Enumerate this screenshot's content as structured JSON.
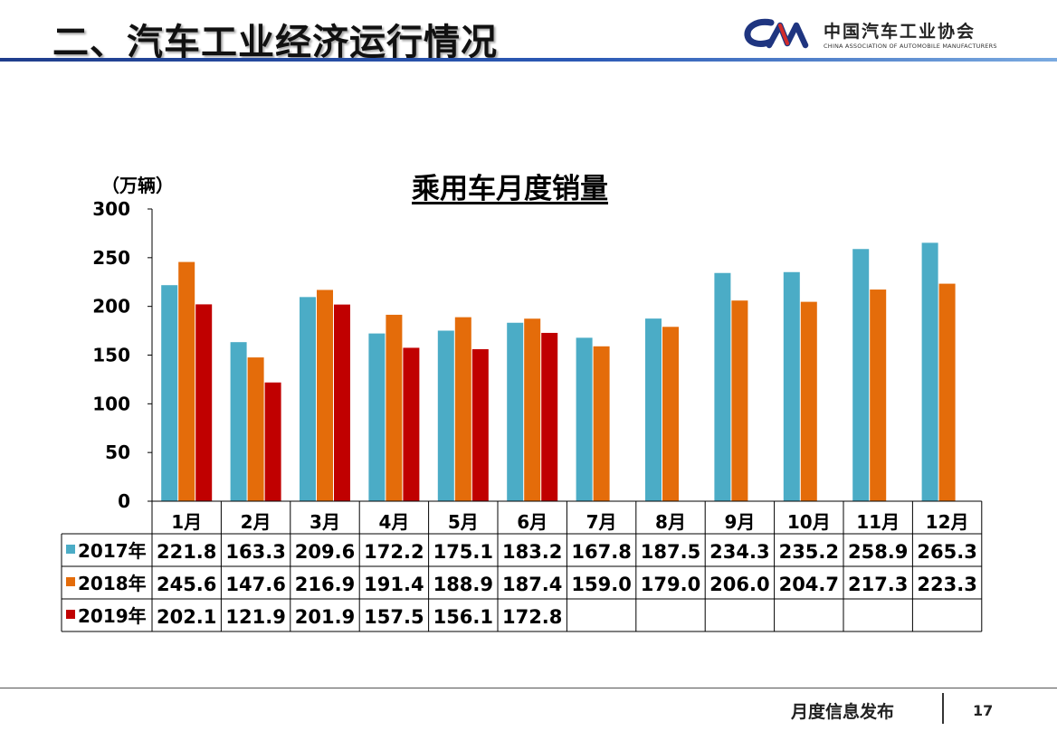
{
  "header": {
    "title": "二、汽车工业经济运行情况",
    "logo_cn": "中国汽车工业协会",
    "logo_en": "CHINA ASSOCIATION OF AUTOMOBILE MANUFACTURERS",
    "rule_color": "#1f3d8c"
  },
  "footer": {
    "text": "月度信息发布",
    "page_number": "17"
  },
  "chart_data": {
    "type": "bar",
    "title": "乘用车月度销量",
    "unit_label": "（万辆）",
    "ylim": [
      0,
      300
    ],
    "yticks": [
      0,
      50,
      100,
      150,
      200,
      250,
      300
    ],
    "grid": false,
    "legend": "data-table",
    "categories": [
      "1月",
      "2月",
      "3月",
      "4月",
      "5月",
      "6月",
      "7月",
      "8月",
      "9月",
      "10月",
      "11月",
      "12月"
    ],
    "series": [
      {
        "name": "2017年",
        "color": "#4bacc6",
        "values": [
          221.8,
          163.3,
          209.6,
          172.2,
          175.1,
          183.2,
          167.8,
          187.5,
          234.3,
          235.2,
          258.9,
          265.3
        ],
        "labels": [
          "221.8",
          "163.3",
          "209.6",
          "172.2",
          "175.1",
          "183.2",
          "167.8",
          "187.5",
          "234.3",
          "235.2",
          "258.9",
          "265.3"
        ]
      },
      {
        "name": "2018年",
        "color": "#e46c0a",
        "values": [
          245.6,
          147.6,
          216.9,
          191.4,
          188.9,
          187.4,
          159.0,
          179.0,
          206.0,
          204.7,
          217.3,
          223.3
        ],
        "labels": [
          "245.6",
          "147.6",
          "216.9",
          "191.4",
          "188.9",
          "187.4",
          "159.0",
          "179.0",
          "206.0",
          "204.7",
          "217.3",
          "223.3"
        ]
      },
      {
        "name": "2019年",
        "color": "#c00000",
        "values": [
          202.1,
          121.9,
          201.9,
          157.5,
          156.1,
          172.8,
          null,
          null,
          null,
          null,
          null,
          null
        ],
        "labels": [
          "202.1",
          "121.9",
          "201.9",
          "157.5",
          "156.1",
          "172.8",
          "",
          "",
          "",
          "",
          "",
          ""
        ]
      }
    ]
  }
}
